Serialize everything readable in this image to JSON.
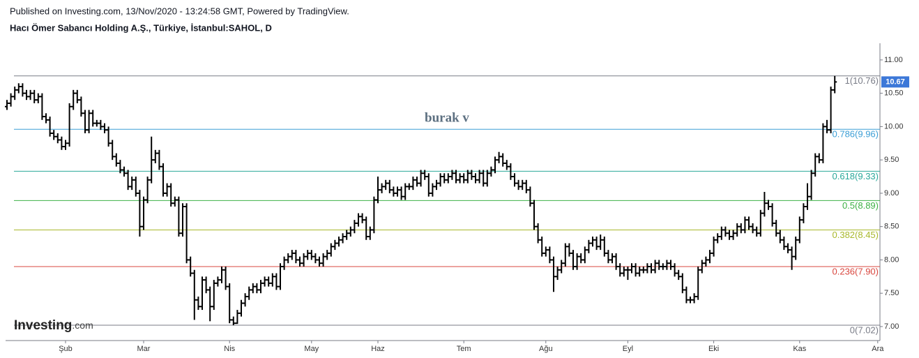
{
  "header": "Published on Investing.com, 13/Nov/2020 - 13:24:58 GMT, Powered by TradingView.",
  "chart_data": {
    "type": "ohlc",
    "title": "Hacı Ömer Sabancı Holding A.Ş., Türkiye, İstanbul:SAHOL, D",
    "annotation": "burak v",
    "logo": {
      "name": "Investing",
      "suffix": ".com"
    },
    "color": "#000000",
    "last_price_color": "#3c78d8",
    "ylim": [
      6.79,
      11.25
    ],
    "yticks": [
      {
        "value": 7,
        "label": "7.00"
      },
      {
        "value": 7.5,
        "label": "7.50"
      },
      {
        "value": 8,
        "label": "8.00"
      },
      {
        "value": 8.5,
        "label": "8.50"
      },
      {
        "value": 9,
        "label": "9.00"
      },
      {
        "value": 9.5,
        "label": "9.50"
      },
      {
        "value": 10,
        "label": "10.00"
      },
      {
        "value": 10.5,
        "label": "10.50"
      },
      {
        "value": 11,
        "label": "11.00"
      }
    ],
    "fib_levels": [
      {
        "label": "1(10.76)",
        "value": 10.76,
        "color": "#787b86"
      },
      {
        "label": "0.786(9.96)",
        "value": 9.96,
        "color": "#3d9fd6"
      },
      {
        "label": "0.618(9.33)",
        "value": 9.33,
        "color": "#2aa89a"
      },
      {
        "label": "0.5(8.89)",
        "value": 8.89,
        "color": "#3cb044"
      },
      {
        "label": "0.382(8.45)",
        "value": 8.45,
        "color": "#a8b82a"
      },
      {
        "label": "0.236(7.90)",
        "value": 7.9,
        "color": "#d9473f"
      },
      {
        "label": "0(7.02)",
        "value": 7.02,
        "color": "#787b86"
      }
    ],
    "categories": [
      null,
      null,
      null,
      null,
      null,
      null,
      null,
      null,
      null,
      null,
      null,
      null,
      null,
      null,
      null,
      "Şub",
      null,
      null,
      null,
      null,
      null,
      null,
      null,
      null,
      null,
      null,
      null,
      null,
      null,
      null,
      null,
      null,
      null,
      null,
      null,
      "Mar",
      null,
      null,
      null,
      null,
      null,
      null,
      null,
      null,
      null,
      null,
      null,
      null,
      null,
      null,
      null,
      null,
      null,
      null,
      null,
      null,
      null,
      "Nis",
      null,
      null,
      null,
      null,
      null,
      null,
      null,
      null,
      null,
      null,
      null,
      null,
      null,
      null,
      null,
      null,
      null,
      null,
      null,
      null,
      "May",
      null,
      null,
      null,
      null,
      null,
      null,
      null,
      null,
      null,
      null,
      null,
      null,
      null,
      null,
      null,
      null,
      "Haz",
      null,
      null,
      null,
      null,
      null,
      null,
      null,
      null,
      null,
      null,
      null,
      null,
      null,
      null,
      null,
      null,
      null,
      null,
      null,
      null,
      null,
      "Tem",
      null,
      null,
      null,
      null,
      null,
      null,
      null,
      null,
      null,
      null,
      null,
      null,
      null,
      null,
      null,
      null,
      null,
      null,
      null,
      null,
      "Ağu",
      null,
      null,
      null,
      null,
      null,
      null,
      null,
      null,
      null,
      null,
      null,
      null,
      null,
      null,
      null,
      null,
      null,
      null,
      null,
      null,
      "Eyl",
      null,
      null,
      null,
      null,
      null,
      null,
      null,
      null,
      null,
      null,
      null,
      null,
      null,
      null,
      null,
      null,
      null,
      null,
      null,
      null,
      null,
      "Eki",
      null,
      null,
      null,
      null,
      null,
      null,
      null,
      null,
      null,
      null,
      null,
      null,
      null,
      null,
      null,
      null,
      null,
      null,
      null,
      null,
      null,
      "Kas",
      null,
      null,
      null,
      null,
      null,
      null,
      null,
      null,
      null,
      null,
      null,
      null,
      null,
      null,
      null,
      null,
      null,
      null,
      null,
      "Ara"
    ],
    "open": [
      10.3,
      10.35,
      10.45,
      10.55,
      10.6,
      10.5,
      10.45,
      10.5,
      10.4,
      10.45,
      10.15,
      10.1,
      9.9,
      9.85,
      9.8,
      9.7,
      9.75,
      10.3,
      10.5,
      10.4,
      10.2,
      9.95,
      10.2,
      10.05,
      10.05,
      10.0,
      9.95,
      9.75,
      9.55,
      9.45,
      9.35,
      9.3,
      9.1,
      9.2,
      9.0,
      8.5,
      8.9,
      9.2,
      9.5,
      9.6,
      9.4,
      9.0,
      9.1,
      8.85,
      8.9,
      8.4,
      8.8,
      8.0,
      7.8,
      7.4,
      7.3,
      7.7,
      7.55,
      7.3,
      7.65,
      7.7,
      7.85,
      7.6,
      7.1,
      7.05,
      7.2,
      7.35,
      7.45,
      7.55,
      7.6,
      7.55,
      7.65,
      7.7,
      7.65,
      7.75,
      7.6,
      7.9,
      8.0,
      8.05,
      8.1,
      8.0,
      7.95,
      8.05,
      8.1,
      8.05,
      8.0,
      7.95,
      8.05,
      8.1,
      8.2,
      8.25,
      8.3,
      8.35,
      8.4,
      8.45,
      8.55,
      8.65,
      8.6,
      8.35,
      8.45,
      8.9,
      9.05,
      9.1,
      9.15,
      9.05,
      9.0,
      9.05,
      8.95,
      9.1,
      9.1,
      9.2,
      9.15,
      9.3,
      9.25,
      9.0,
      9.1,
      9.15,
      9.25,
      9.2,
      9.25,
      9.3,
      9.2,
      9.25,
      9.2,
      9.3,
      9.25,
      9.2,
      9.3,
      9.15,
      9.3,
      9.35,
      9.5,
      9.55,
      9.45,
      9.4,
      9.25,
      9.15,
      9.1,
      9.15,
      9.05,
      8.85,
      8.5,
      8.3,
      8.1,
      8.15,
      8.0,
      7.75,
      7.85,
      7.95,
      8.2,
      8.1,
      7.9,
      8.05,
      8.0,
      8.15,
      8.25,
      8.3,
      8.2,
      8.3,
      8.1,
      8.0,
      8.05,
      7.9,
      7.8,
      7.85,
      7.85,
      7.9,
      7.8,
      7.85,
      7.85,
      7.9,
      7.85,
      7.95,
      7.9,
      7.9,
      7.95,
      7.9,
      7.8,
      7.75,
      7.55,
      7.4,
      7.4,
      7.45,
      7.85,
      7.95,
      8.0,
      8.1,
      8.3,
      8.35,
      8.45,
      8.4,
      8.35,
      8.4,
      8.5,
      8.45,
      8.6,
      8.5,
      8.45,
      8.4,
      8.7,
      8.85,
      8.8,
      8.55,
      8.4,
      8.3,
      8.2,
      8.15,
      8.05,
      8.3,
      8.6,
      8.8,
      8.95,
      9.3,
      9.55,
      9.5,
      10.0,
      9.95,
      10.55,
      null,
      null,
      null,
      null,
      null,
      null,
      null,
      null,
      null,
      null,
      null
    ],
    "high": [
      10.4,
      10.5,
      10.6,
      10.65,
      10.65,
      10.55,
      10.55,
      10.55,
      10.5,
      10.5,
      10.2,
      10.15,
      9.95,
      9.9,
      9.85,
      9.8,
      10.35,
      10.55,
      10.55,
      10.45,
      10.25,
      10.25,
      10.25,
      10.1,
      10.1,
      10.05,
      10.0,
      9.8,
      9.6,
      9.5,
      9.4,
      9.35,
      9.25,
      9.25,
      9.05,
      8.95,
      9.25,
      9.85,
      9.65,
      9.65,
      9.45,
      9.15,
      9.15,
      8.95,
      8.95,
      8.85,
      8.85,
      8.05,
      7.85,
      7.45,
      7.75,
      7.75,
      7.6,
      7.7,
      7.75,
      7.9,
      7.9,
      7.65,
      7.15,
      7.25,
      7.4,
      7.5,
      7.6,
      7.65,
      7.65,
      7.7,
      7.75,
      7.75,
      7.8,
      7.8,
      7.95,
      8.05,
      8.1,
      8.15,
      8.15,
      8.05,
      8.1,
      8.15,
      8.15,
      8.1,
      8.05,
      8.1,
      8.15,
      8.25,
      8.3,
      8.35,
      8.4,
      8.45,
      8.5,
      8.6,
      8.7,
      8.7,
      8.65,
      8.5,
      8.95,
      9.25,
      9.15,
      9.2,
      9.2,
      9.1,
      9.1,
      9.1,
      9.15,
      9.15,
      9.25,
      9.25,
      9.35,
      9.35,
      9.3,
      9.15,
      9.2,
      9.3,
      9.3,
      9.3,
      9.35,
      9.35,
      9.3,
      9.3,
      9.35,
      9.35,
      9.3,
      9.35,
      9.35,
      9.35,
      9.4,
      9.55,
      9.62,
      9.6,
      9.5,
      9.45,
      9.3,
      9.2,
      9.2,
      9.2,
      9.1,
      8.9,
      8.55,
      8.35,
      8.2,
      8.2,
      8.05,
      7.9,
      8.0,
      8.25,
      8.25,
      8.15,
      8.1,
      8.1,
      8.2,
      8.3,
      8.35,
      8.35,
      8.38,
      8.35,
      8.15,
      8.1,
      8.1,
      7.95,
      7.9,
      7.9,
      7.95,
      7.95,
      7.9,
      7.9,
      7.95,
      7.95,
      8.0,
      8.0,
      7.95,
      8.0,
      8.0,
      7.95,
      7.85,
      7.8,
      7.6,
      7.45,
      7.5,
      7.9,
      8.0,
      8.05,
      8.15,
      8.35,
      8.4,
      8.5,
      8.5,
      8.45,
      8.45,
      8.55,
      8.55,
      8.65,
      8.65,
      8.55,
      8.5,
      8.75,
      9.02,
      8.9,
      8.85,
      8.6,
      8.45,
      8.35,
      8.25,
      8.2,
      8.35,
      8.65,
      8.85,
      9.15,
      9.35,
      9.6,
      9.6,
      10.05,
      10.1,
      10.6,
      10.76,
      null,
      null,
      null,
      null,
      null,
      null,
      null,
      null,
      null,
      null,
      null
    ],
    "low": [
      10.25,
      10.3,
      10.4,
      10.5,
      10.45,
      10.4,
      10.4,
      10.35,
      10.35,
      10.1,
      10.05,
      9.85,
      9.8,
      9.75,
      9.65,
      9.65,
      9.7,
      10.25,
      10.35,
      10.15,
      9.9,
      9.9,
      10.0,
      10.0,
      9.95,
      9.9,
      9.7,
      9.5,
      9.4,
      9.3,
      9.25,
      9.05,
      9.05,
      8.95,
      8.35,
      8.45,
      8.85,
      9.15,
      9.45,
      9.35,
      8.95,
      8.95,
      8.8,
      8.8,
      8.35,
      8.35,
      7.95,
      7.75,
      7.1,
      7.25,
      7.25,
      7.5,
      7.08,
      7.25,
      7.6,
      7.65,
      7.55,
      7.05,
      7.02,
      7.04,
      7.15,
      7.3,
      7.4,
      7.5,
      7.5,
      7.5,
      7.6,
      7.6,
      7.6,
      7.55,
      7.55,
      7.85,
      7.95,
      8.0,
      7.95,
      7.9,
      7.9,
      8.0,
      8.0,
      7.95,
      7.9,
      7.9,
      8.0,
      8.05,
      8.15,
      8.2,
      8.25,
      8.3,
      8.35,
      8.4,
      8.5,
      8.55,
      8.3,
      8.3,
      8.4,
      8.85,
      9.0,
      9.05,
      9.0,
      8.95,
      8.95,
      8.9,
      8.9,
      9.05,
      9.05,
      9.1,
      9.1,
      9.2,
      8.95,
      8.95,
      9.05,
      9.1,
      9.15,
      9.15,
      9.2,
      9.15,
      9.15,
      9.15,
      9.15,
      9.2,
      9.15,
      9.15,
      9.1,
      9.1,
      9.25,
      9.3,
      9.45,
      9.4,
      9.35,
      9.2,
      9.1,
      9.05,
      9.05,
      9.0,
      8.8,
      8.45,
      8.25,
      8.05,
      8.05,
      7.95,
      7.52,
      7.7,
      7.8,
      7.9,
      8.05,
      7.85,
      7.85,
      7.95,
      7.95,
      8.1,
      8.2,
      8.15,
      8.15,
      8.05,
      7.95,
      7.95,
      7.85,
      7.75,
      7.75,
      7.7,
      7.8,
      7.75,
      7.75,
      7.8,
      7.8,
      7.8,
      7.8,
      7.85,
      7.85,
      7.85,
      7.85,
      7.75,
      7.7,
      7.5,
      7.35,
      7.35,
      7.35,
      7.4,
      7.8,
      7.9,
      7.95,
      8.05,
      8.25,
      8.3,
      8.35,
      8.3,
      8.3,
      8.35,
      8.4,
      8.4,
      8.45,
      8.4,
      8.35,
      8.35,
      8.65,
      8.75,
      8.5,
      8.35,
      8.25,
      8.15,
      8.1,
      7.85,
      8.0,
      8.25,
      8.55,
      8.75,
      8.9,
      9.25,
      9.45,
      9.45,
      9.9,
      9.9,
      10.5,
      null,
      null,
      null,
      null,
      null,
      null,
      null,
      null,
      null,
      null,
      null
    ],
    "close": [
      10.35,
      10.45,
      10.55,
      10.6,
      10.5,
      10.45,
      10.5,
      10.4,
      10.45,
      10.15,
      10.1,
      9.9,
      9.85,
      9.8,
      9.7,
      9.75,
      10.3,
      10.5,
      10.4,
      10.2,
      9.95,
      10.2,
      10.05,
      10.05,
      10.0,
      9.95,
      9.75,
      9.55,
      9.45,
      9.35,
      9.3,
      9.1,
      9.2,
      9.0,
      8.5,
      8.9,
      9.2,
      9.5,
      9.6,
      9.4,
      9.0,
      9.1,
      8.85,
      8.9,
      8.4,
      8.8,
      8.0,
      7.8,
      7.4,
      7.3,
      7.7,
      7.55,
      7.3,
      7.65,
      7.7,
      7.85,
      7.6,
      7.1,
      7.05,
      7.2,
      7.35,
      7.45,
      7.55,
      7.6,
      7.55,
      7.65,
      7.7,
      7.65,
      7.75,
      7.6,
      7.9,
      8.0,
      8.05,
      8.1,
      8.0,
      7.95,
      8.05,
      8.1,
      8.05,
      8.0,
      7.95,
      8.05,
      8.1,
      8.2,
      8.25,
      8.3,
      8.35,
      8.4,
      8.45,
      8.55,
      8.65,
      8.6,
      8.35,
      8.45,
      8.9,
      9.05,
      9.1,
      9.15,
      9.05,
      9.0,
      9.05,
      8.95,
      9.1,
      9.1,
      9.2,
      9.15,
      9.3,
      9.25,
      9.0,
      9.1,
      9.15,
      9.25,
      9.2,
      9.25,
      9.3,
      9.2,
      9.25,
      9.2,
      9.3,
      9.25,
      9.2,
      9.3,
      9.15,
      9.3,
      9.35,
      9.5,
      9.55,
      9.45,
      9.4,
      9.25,
      9.15,
      9.1,
      9.15,
      9.05,
      8.85,
      8.5,
      8.3,
      8.1,
      8.15,
      8.0,
      7.75,
      7.85,
      7.95,
      8.2,
      8.1,
      7.9,
      8.05,
      8.0,
      8.15,
      8.25,
      8.3,
      8.2,
      8.3,
      8.1,
      8.0,
      8.05,
      7.9,
      7.8,
      7.85,
      7.85,
      7.9,
      7.8,
      7.85,
      7.85,
      7.9,
      7.85,
      7.95,
      7.9,
      7.9,
      7.95,
      7.9,
      7.8,
      7.75,
      7.55,
      7.4,
      7.4,
      7.45,
      7.85,
      7.95,
      8.0,
      8.1,
      8.3,
      8.35,
      8.45,
      8.4,
      8.35,
      8.4,
      8.5,
      8.45,
      8.6,
      8.5,
      8.45,
      8.4,
      8.7,
      8.85,
      8.8,
      8.55,
      8.4,
      8.3,
      8.2,
      8.15,
      8.05,
      8.3,
      8.6,
      8.8,
      8.95,
      9.3,
      9.55,
      9.5,
      10.0,
      9.95,
      10.55,
      10.67,
      null,
      null,
      null,
      null,
      null,
      null,
      null,
      null,
      null,
      null,
      null
    ]
  }
}
